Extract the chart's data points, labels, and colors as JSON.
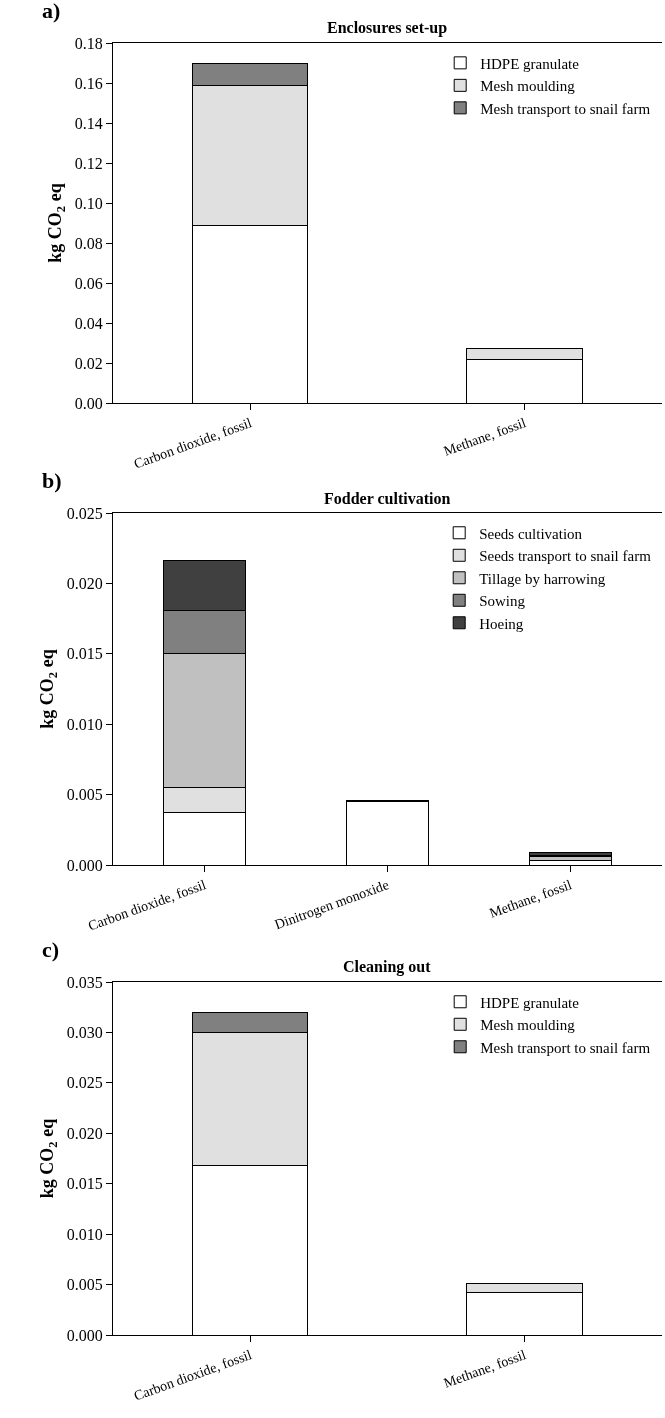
{
  "chart_data": [
    {
      "type": "bar",
      "title": "Enclosures set-up",
      "annotations": [
        "a)"
      ],
      "ylabel": "kg CO$_{2}$ eq",
      "categories": [
        "Carbon dioxide, fossil",
        "Methane, fossil"
      ],
      "stacked": true,
      "ylim": [
        0,
        0.18
      ],
      "yticks": [
        {
          "value": 0,
          "label": "0.00"
        },
        {
          "value": 0.02,
          "label": "0.02"
        },
        {
          "value": 0.04,
          "label": "0.04"
        },
        {
          "value": 0.06,
          "label": "0.06"
        },
        {
          "value": 0.08,
          "label": "0.08"
        },
        {
          "value": 0.1,
          "label": "0.10"
        },
        {
          "value": 0.12,
          "label": "0.12"
        },
        {
          "value": 0.14,
          "label": "0.14"
        },
        {
          "value": 0.16,
          "label": "0.16"
        },
        {
          "value": 0.18,
          "label": "0.18"
        }
      ],
      "legend": "top right",
      "series": [
        {
          "name": "HDPE granulate",
          "color": "#ffffff",
          "values": [
            0.089,
            0.022
          ]
        },
        {
          "name": "Mesh moulding",
          "color": "#e0e0e0",
          "values": [
            0.07,
            0.0055
          ]
        },
        {
          "name": "Mesh transport to snail farm",
          "color": "#808080",
          "values": [
            0.011,
            null
          ]
        }
      ]
    },
    {
      "type": "bar",
      "title": "Fodder cultivation",
      "annotations": [
        "b)"
      ],
      "ylabel": "kg CO$_{2}$ eq",
      "categories": [
        "Carbon dioxide, fossil",
        "Dinitrogen monoxide",
        "Methane, fossil"
      ],
      "stacked": true,
      "ylim": [
        0,
        0.025
      ],
      "yticks": [
        {
          "value": 0,
          "label": "0.000"
        },
        {
          "value": 0.005,
          "label": "0.005"
        },
        {
          "value": 0.01,
          "label": "0.010"
        },
        {
          "value": 0.015,
          "label": "0.015"
        },
        {
          "value": 0.02,
          "label": "0.020"
        },
        {
          "value": 0.025,
          "label": "0.025"
        }
      ],
      "legend": "top right",
      "series": [
        {
          "name": "Seeds cultivation",
          "color": "#ffffff",
          "values": [
            0.0037,
            0.0045,
            0.0003
          ]
        },
        {
          "name": "Seeds transport to snail farm",
          "color": "#e0e0e0",
          "values": [
            0.0018,
            null,
            null
          ]
        },
        {
          "name": "Tillage by harrowing",
          "color": "#c0c0c0",
          "values": [
            0.0095,
            null,
            0.0003
          ]
        },
        {
          "name": "Sowing",
          "color": "#808080",
          "values": [
            0.0031,
            null,
            0.0001
          ]
        },
        {
          "name": "Hoeing",
          "color": "#404040",
          "values": [
            0.0035,
            0.0001,
            0.0002
          ]
        }
      ]
    },
    {
      "type": "bar",
      "title": "Cleaning out",
      "annotations": [
        "c)"
      ],
      "ylabel": "kg CO$_{2}$ eq",
      "categories": [
        "Carbon dioxide, fossil",
        "Methane, fossil"
      ],
      "stacked": true,
      "ylim": [
        0,
        0.035
      ],
      "yticks": [
        {
          "value": 0,
          "label": "0.000"
        },
        {
          "value": 0.005,
          "label": "0.005"
        },
        {
          "value": 0.01,
          "label": "0.010"
        },
        {
          "value": 0.015,
          "label": "0.015"
        },
        {
          "value": 0.02,
          "label": "0.020"
        },
        {
          "value": 0.025,
          "label": "0.025"
        },
        {
          "value": 0.03,
          "label": "0.030"
        },
        {
          "value": 0.035,
          "label": "0.035"
        }
      ],
      "legend": "top right",
      "series": [
        {
          "name": "HDPE granulate",
          "color": "#ffffff",
          "values": [
            0.0168,
            0.0042
          ]
        },
        {
          "name": "Mesh moulding",
          "color": "#e0e0e0",
          "values": [
            0.0132,
            0.0009
          ]
        },
        {
          "name": "Mesh transport to snail farm",
          "color": "#808080",
          "values": [
            0.002,
            null
          ]
        }
      ]
    }
  ]
}
